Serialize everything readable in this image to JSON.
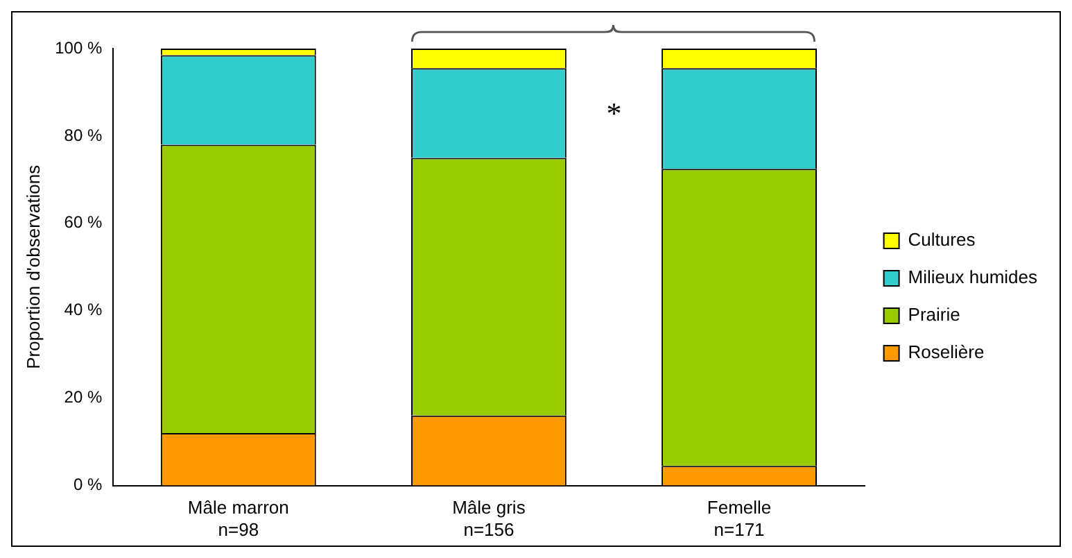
{
  "chart_data": {
    "type": "bar",
    "stacked": true,
    "ylabel": "Proportion d'observations",
    "categories": [
      "Mâle marron\nn=98",
      "Mâle gris\nn=156",
      "Femelle\nn=171"
    ],
    "series": [
      {
        "name": "Roselière",
        "color": "#ff9900",
        "values": [
          12,
          16,
          4.5
        ]
      },
      {
        "name": "Prairie",
        "color": "#99cc00",
        "values": [
          66,
          59,
          68
        ]
      },
      {
        "name": "Milieux humides",
        "color": "#33cccc",
        "values": [
          20.5,
          20.5,
          23
        ]
      },
      {
        "name": "Cultures",
        "color": "#ffff00",
        "values": [
          1.5,
          4.5,
          4.5
        ]
      }
    ],
    "ylim": [
      0,
      100
    ],
    "yticks": [
      {
        "value": 0,
        "label": "0 %"
      },
      {
        "value": 20,
        "label": "20 %"
      },
      {
        "value": 40,
        "label": "40 %"
      },
      {
        "value": 60,
        "label": "60 %"
      },
      {
        "value": 80,
        "label": "80 %"
      },
      {
        "value": 100,
        "label": "100 %"
      }
    ],
    "grid": false,
    "legend": "right",
    "annotations": [
      "*"
    ]
  }
}
